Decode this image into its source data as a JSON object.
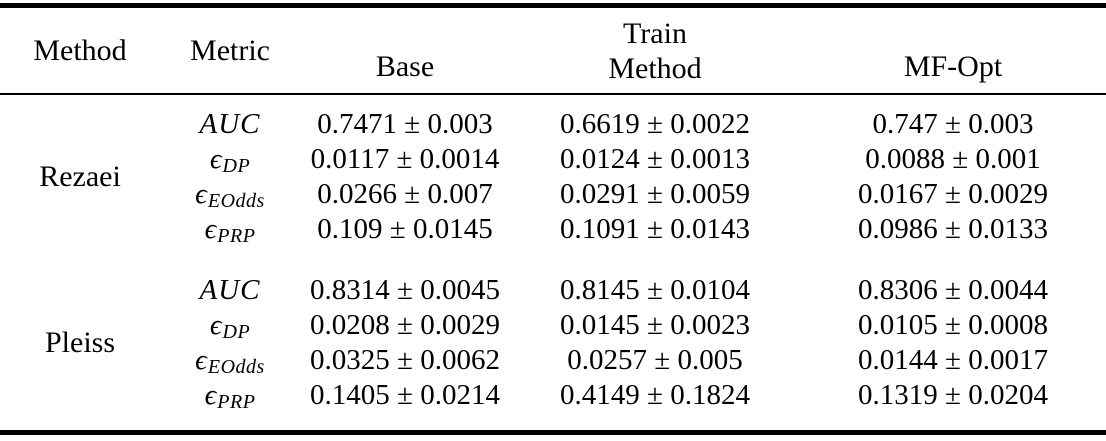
{
  "table": {
    "header": {
      "method": "Method",
      "metric": "Metric",
      "base": "Base",
      "train_line1": "Train",
      "train_line2": "Method",
      "mf_opt": "MF-Opt"
    },
    "groups": [
      {
        "method": "Rezaei",
        "rows": [
          {
            "metric_main": "AUC",
            "metric_sub": "",
            "base": "0.7471 ± 0.003",
            "train": "0.6619 ± 0.0022",
            "mf": "0.747 ± 0.003"
          },
          {
            "metric_main": "ϵ",
            "metric_sub": "DP",
            "base": "0.0117 ± 0.0014",
            "train": "0.0124 ± 0.0013",
            "mf": "0.0088 ± 0.001"
          },
          {
            "metric_main": "ϵ",
            "metric_sub": "EOdds",
            "base": "0.0266 ± 0.007",
            "train": "0.0291 ± 0.0059",
            "mf": "0.0167 ± 0.0029"
          },
          {
            "metric_main": "ϵ",
            "metric_sub": "PRP",
            "base": "0.109 ± 0.0145",
            "train": "0.1091 ± 0.0143",
            "mf": "0.0986 ± 0.0133"
          }
        ]
      },
      {
        "method": "Pleiss",
        "rows": [
          {
            "metric_main": "AUC",
            "metric_sub": "",
            "base": "0.8314 ± 0.0045",
            "train": "0.8145 ± 0.0104",
            "mf": "0.8306 ± 0.0044"
          },
          {
            "metric_main": "ϵ",
            "metric_sub": "DP",
            "base": "0.0208 ± 0.0029",
            "train": "0.0145 ± 0.0023",
            "mf": "0.0105 ± 0.0008"
          },
          {
            "metric_main": "ϵ",
            "metric_sub": "EOdds",
            "base": "0.0325 ± 0.0062",
            "train": "0.0257 ± 0.005",
            "mf": "0.0144 ± 0.0017"
          },
          {
            "metric_main": "ϵ",
            "metric_sub": "PRP",
            "base": "0.1405 ± 0.0214",
            "train": "0.4149 ± 0.1824",
            "mf": "0.1319 ± 0.0204"
          }
        ]
      }
    ]
  },
  "chart_data": {
    "type": "table",
    "columns": [
      "Method",
      "Metric",
      "Base",
      "Train Method",
      "MF-Opt"
    ],
    "rows": [
      [
        "Rezaei",
        "AUC",
        "0.7471 ± 0.003",
        "0.6619 ± 0.0022",
        "0.747 ± 0.003"
      ],
      [
        "Rezaei",
        "ϵ_DP",
        "0.0117 ± 0.0014",
        "0.0124 ± 0.0013",
        "0.0088 ± 0.001"
      ],
      [
        "Rezaei",
        "ϵ_EOdds",
        "0.0266 ± 0.007",
        "0.0291 ± 0.0059",
        "0.0167 ± 0.0029"
      ],
      [
        "Rezaei",
        "ϵ_PRP",
        "0.109 ± 0.0145",
        "0.1091 ± 0.0143",
        "0.0986 ± 0.0133"
      ],
      [
        "Pleiss",
        "AUC",
        "0.8314 ± 0.0045",
        "0.8145 ± 0.0104",
        "0.8306 ± 0.0044"
      ],
      [
        "Pleiss",
        "ϵ_DP",
        "0.0208 ± 0.0029",
        "0.0145 ± 0.0023",
        "0.0105 ± 0.0008"
      ],
      [
        "Pleiss",
        "ϵ_EOdds",
        "0.0325 ± 0.0062",
        "0.0257 ± 0.005",
        "0.0144 ± 0.0017"
      ],
      [
        "Pleiss",
        "ϵ_PRP",
        "0.1405 ± 0.0214",
        "0.4149 ± 0.1824",
        "0.1319 ± 0.0204"
      ]
    ]
  }
}
